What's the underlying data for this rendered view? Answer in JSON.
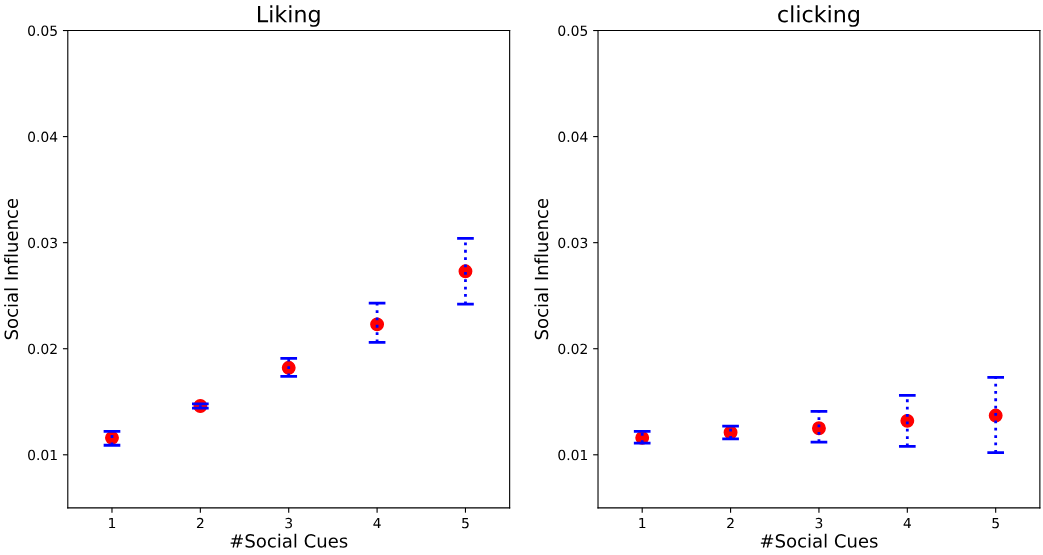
{
  "chart_data": [
    {
      "type": "scatter",
      "title": "Liking",
      "xlabel": "#Social Cues",
      "ylabel": "Social Influence",
      "x": [
        1,
        2,
        3,
        4,
        5
      ],
      "xlim": [
        0.5,
        5.5
      ],
      "xticks": [
        1,
        2,
        3,
        4,
        5
      ],
      "ylim": [
        0.005,
        0.05
      ],
      "yticks": [
        0.01,
        0.02,
        0.03,
        0.04,
        0.05
      ],
      "marker": "circle",
      "grid": false,
      "legend": false,
      "series": [
        {
          "color": "#ff0000",
          "values": [
            0.0116,
            0.0146,
            0.0182,
            0.0223,
            0.0273
          ],
          "errors": [
            [
              0.0109,
              0.0122
            ],
            [
              0.0144,
              0.0148
            ],
            [
              0.0174,
              0.0191
            ],
            [
              0.0206,
              0.0243
            ],
            [
              0.0242,
              0.0304
            ]
          ]
        }
      ]
    },
    {
      "type": "scatter",
      "title": "clicking",
      "xlabel": "#Social Cues",
      "ylabel": "Social Influence",
      "x": [
        1,
        2,
        3,
        4,
        5
      ],
      "xlim": [
        0.5,
        5.5
      ],
      "xticks": [
        1,
        2,
        3,
        4,
        5
      ],
      "ylim": [
        0.005,
        0.05
      ],
      "yticks": [
        0.01,
        0.02,
        0.03,
        0.04,
        0.05
      ],
      "marker": "circle",
      "grid": false,
      "legend": false,
      "series": [
        {
          "color": "#ff0000",
          "values": [
            0.0116,
            0.0121,
            0.0125,
            0.0132,
            0.0137
          ],
          "errors": [
            [
              0.0111,
              0.0122
            ],
            [
              0.0115,
              0.0127
            ],
            [
              0.0112,
              0.0141
            ],
            [
              0.0108,
              0.0156
            ],
            [
              0.0102,
              0.0173
            ]
          ]
        }
      ]
    }
  ]
}
